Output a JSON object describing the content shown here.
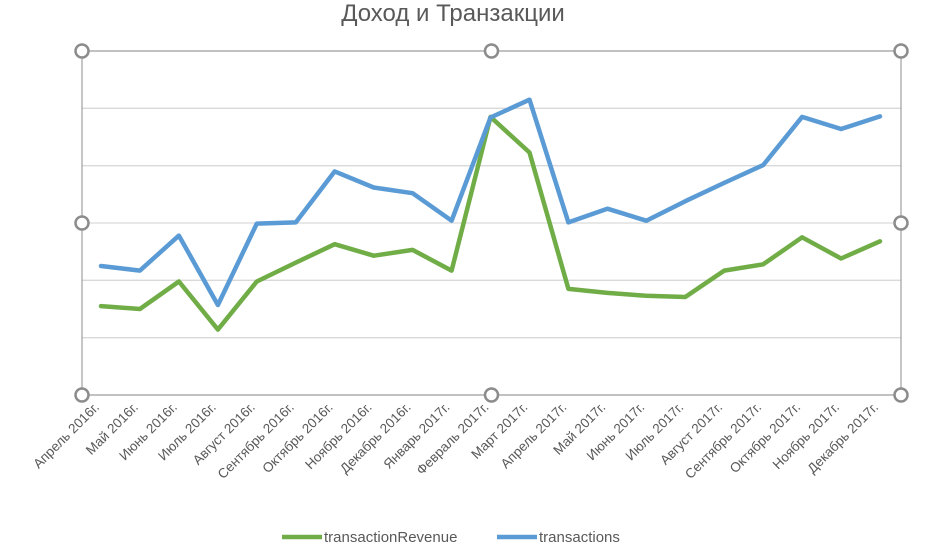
{
  "chart_data": {
    "type": "line",
    "title": "Доход и Транзакции",
    "xlabel": "",
    "ylabel": "",
    "categories": [
      "Апрель 2016г.",
      "Май 2016г.",
      "Июнь 2016г.",
      "Июль 2016г.",
      "Август 2016г.",
      "Сентябрь 2016г.",
      "Октябрь 2016г.",
      "Ноябрь 2016г.",
      "Декабрь 2016г.",
      "Январь 2017г.",
      "Февраль 2017г.",
      "Март 2017г.",
      "Апрель 2017г.",
      "Май 2017г.",
      "Июнь 2017г.",
      "Июль 2017г.",
      "Август 2017г.",
      "Сентябрь 2017г.",
      "Октябрь 2017г.",
      "Ноябрь 2017г.",
      "Декабрь 2017г."
    ],
    "ylim": [
      0,
      6
    ],
    "grid": true,
    "y_axis_labels_visible": false,
    "legend_position": "bottom",
    "series": [
      {
        "name": "transactionRevenue",
        "color": "#70AD47",
        "values": [
          1.55,
          1.5,
          1.98,
          1.14,
          1.98,
          2.31,
          2.63,
          2.43,
          2.53,
          2.17,
          4.85,
          4.23,
          1.85,
          1.78,
          1.73,
          1.71,
          2.17,
          2.28,
          2.75,
          2.38,
          2.68
        ]
      },
      {
        "name": "transactions",
        "color": "#5B9BD5",
        "values": [
          2.25,
          2.17,
          2.78,
          1.57,
          2.99,
          3.01,
          3.9,
          3.62,
          3.52,
          3.04,
          4.84,
          5.15,
          3.01,
          3.25,
          3.04,
          3.38,
          3.7,
          4.01,
          4.85,
          4.64,
          4.86
        ]
      }
    ]
  }
}
